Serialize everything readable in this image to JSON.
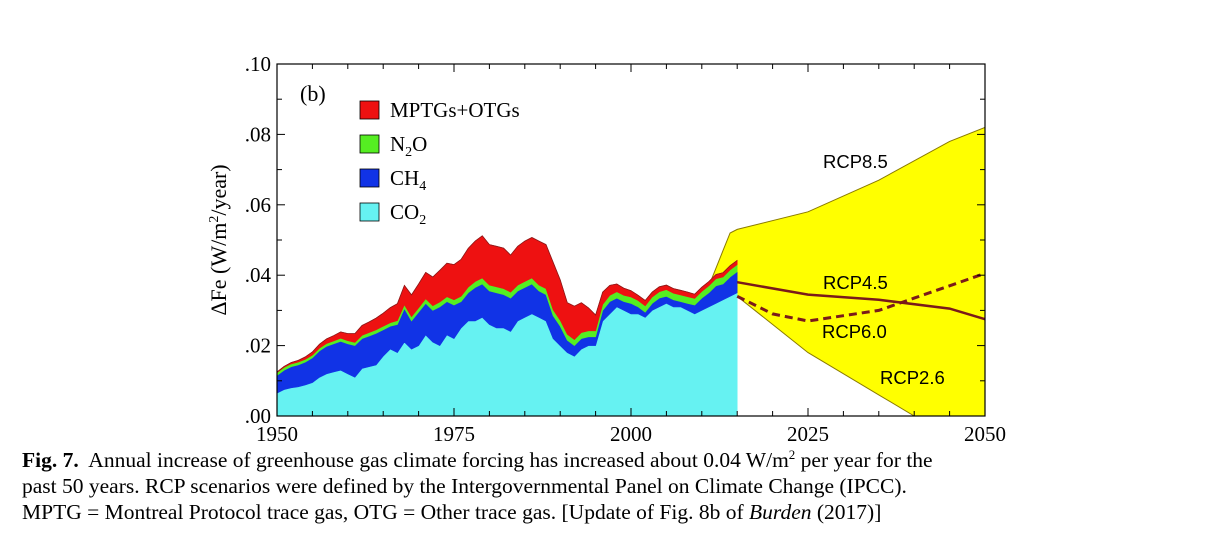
{
  "chart_data": {
    "type": "area",
    "panel_label": "(b)",
    "xlim": [
      1950,
      2050
    ],
    "ylim": [
      0,
      0.1
    ],
    "x_ticks": [
      1950,
      1975,
      2000,
      2025,
      2050
    ],
    "x_tick_labels": [
      "1950",
      "1975",
      "2000",
      "2025",
      "2050"
    ],
    "y_ticks": [
      0,
      0.02,
      0.04,
      0.06,
      0.08,
      0.1
    ],
    "y_tick_labels": [
      ".00",
      ".02",
      ".04",
      ".06",
      ".08",
      ".10"
    ],
    "ylabel": {
      "pre": "ΔFe (W/m",
      "sup": "2",
      "post": "/year)"
    },
    "legend_placement": "top-left",
    "x": [
      1950,
      1951,
      1952,
      1953,
      1954,
      1955,
      1956,
      1957,
      1958,
      1959,
      1960,
      1961,
      1962,
      1963,
      1964,
      1965,
      1966,
      1967,
      1968,
      1969,
      1970,
      1971,
      1972,
      1973,
      1974,
      1975,
      1976,
      1977,
      1978,
      1979,
      1980,
      1981,
      1982,
      1983,
      1984,
      1985,
      1986,
      1987,
      1988,
      1989,
      1990,
      1991,
      1992,
      1993,
      1994,
      1995,
      1996,
      1997,
      1998,
      1999,
      2000,
      2001,
      2002,
      2003,
      2004,
      2005,
      2006,
      2007,
      2008,
      2009,
      2010,
      2011,
      2012,
      2013,
      2014,
      2015
    ],
    "series": [
      {
        "name": "CO",
        "sub": "2",
        "color": "#66f2f2",
        "values": [
          0.0065,
          0.0075,
          0.008,
          0.0083,
          0.0088,
          0.0095,
          0.011,
          0.012,
          0.0125,
          0.013,
          0.012,
          0.011,
          0.0135,
          0.014,
          0.0145,
          0.017,
          0.019,
          0.018,
          0.021,
          0.019,
          0.02,
          0.023,
          0.021,
          0.02,
          0.023,
          0.022,
          0.025,
          0.027,
          0.027,
          0.028,
          0.026,
          0.025,
          0.025,
          0.024,
          0.027,
          0.028,
          0.029,
          0.028,
          0.027,
          0.022,
          0.02,
          0.018,
          0.017,
          0.019,
          0.02,
          0.02,
          0.027,
          0.029,
          0.031,
          0.03,
          0.029,
          0.029,
          0.028,
          0.03,
          0.031,
          0.032,
          0.031,
          0.031,
          0.03,
          0.029,
          0.03,
          0.031,
          0.032,
          0.033,
          0.034,
          0.035
        ]
      },
      {
        "name": "CH",
        "sub": "4",
        "color": "#1133e6",
        "values": [
          0.005,
          0.0055,
          0.006,
          0.0062,
          0.0065,
          0.007,
          0.0075,
          0.0078,
          0.008,
          0.0082,
          0.0085,
          0.009,
          0.0085,
          0.0087,
          0.009,
          0.0075,
          0.0065,
          0.008,
          0.0095,
          0.008,
          0.0095,
          0.009,
          0.009,
          0.011,
          0.0095,
          0.0095,
          0.0075,
          0.008,
          0.0095,
          0.0095,
          0.0095,
          0.01,
          0.0095,
          0.0095,
          0.0085,
          0.0085,
          0.0085,
          0.0075,
          0.0075,
          0.0065,
          0.0055,
          0.0035,
          0.003,
          0.003,
          0.0025,
          0.0025,
          0.003,
          0.0035,
          0.0025,
          0.0025,
          0.003,
          0.002,
          0.0015,
          0.002,
          0.0025,
          0.002,
          0.002,
          0.0015,
          0.002,
          0.0025,
          0.0035,
          0.004,
          0.005,
          0.0045,
          0.0055,
          0.006
        ]
      },
      {
        "name": "N",
        "sub": "2",
        "post": "O",
        "color": "#55ee22",
        "values": [
          0.0008,
          0.0008,
          0.0008,
          0.0008,
          0.0008,
          0.0008,
          0.0008,
          0.0008,
          0.0008,
          0.0009,
          0.0009,
          0.0009,
          0.0009,
          0.001,
          0.001,
          0.001,
          0.001,
          0.0011,
          0.0011,
          0.0012,
          0.0012,
          0.0013,
          0.0013,
          0.0014,
          0.0014,
          0.0015,
          0.0015,
          0.0016,
          0.0017,
          0.0017,
          0.0017,
          0.0017,
          0.0017,
          0.0017,
          0.0017,
          0.0017,
          0.0017,
          0.0017,
          0.0017,
          0.0017,
          0.0017,
          0.0017,
          0.0017,
          0.0017,
          0.0017,
          0.0017,
          0.0017,
          0.0018,
          0.0018,
          0.0018,
          0.0018,
          0.0018,
          0.0018,
          0.0018,
          0.0018,
          0.0019,
          0.0019,
          0.0019,
          0.0019,
          0.0019,
          0.0019,
          0.002,
          0.002,
          0.002,
          0.002,
          0.002
        ]
      },
      {
        "name": "MPTGs+OTGs",
        "color": "#ee1111",
        "values": [
          0.0002,
          0.0003,
          0.0004,
          0.0005,
          0.0007,
          0.0009,
          0.0011,
          0.0013,
          0.0015,
          0.0018,
          0.002,
          0.0025,
          0.0028,
          0.003,
          0.0033,
          0.0037,
          0.0043,
          0.0048,
          0.0055,
          0.0062,
          0.0068,
          0.0075,
          0.0082,
          0.009,
          0.0095,
          0.01,
          0.0105,
          0.011,
          0.0115,
          0.012,
          0.0115,
          0.0115,
          0.0115,
          0.0105,
          0.011,
          0.0115,
          0.0115,
          0.0125,
          0.0125,
          0.0135,
          0.0115,
          0.009,
          0.0095,
          0.0085,
          0.0065,
          0.0045,
          0.0035,
          0.0028,
          0.0022,
          0.002,
          0.0018,
          0.0015,
          0.0015,
          0.0014,
          0.0014,
          0.0013,
          0.0013,
          0.0013,
          0.0013,
          0.0012,
          0.0012,
          0.0012,
          0.0012,
          0.0012,
          0.0012,
          0.0012
        ]
      }
    ],
    "projection_envelope": {
      "color": "#ffff00",
      "upper": {
        "x": [
          2015,
          2025,
          2035,
          2045,
          2050
        ],
        "y": [
          0.049,
          0.058,
          0.067,
          0.078,
          0.082
        ]
      },
      "lower": {
        "x": [
          2015,
          2025,
          2035,
          2040,
          2050
        ],
        "y": [
          0.034,
          0.018,
          0.006,
          0.0,
          0.0
        ]
      },
      "early_upper": {
        "x": [
          2011,
          2013,
          2014,
          2015
        ],
        "y": [
          0.037,
          0.047,
          0.052,
          0.053
        ]
      }
    },
    "scenarios": [
      {
        "name": "RCP8.5"
      },
      {
        "name": "RCP4.5",
        "style": "solid",
        "color": "#7a1a1a",
        "x": [
          2015,
          2025,
          2035,
          2045,
          2050
        ],
        "y": [
          0.038,
          0.0345,
          0.033,
          0.0305,
          0.0275
        ]
      },
      {
        "name": "RCP6.0",
        "style": "dashed",
        "color": "#7a1a1a",
        "x": [
          2015,
          2020,
          2025,
          2030,
          2035,
          2040,
          2045,
          2050
        ],
        "y": [
          0.034,
          0.029,
          0.027,
          0.0285,
          0.03,
          0.0335,
          0.037,
          0.0405
        ]
      },
      {
        "name": "RCP2.6"
      }
    ]
  },
  "caption": {
    "fig_label": "Fig. 7.",
    "line1_text": "  Annual increase of greenhouse gas climate forcing has increased about 0.04 W/m",
    "line1_sup": "2",
    "line1_end": " per year for the",
    "line2": "past 50 years.  RCP scenarios were defined by the Intergovernmental Panel on Climate Change (IPCC).",
    "line3_pre": "MPTG = Montreal Protocol trace gas, OTG = Other trace gas. [Update of Fig. 8b of ",
    "line3_italic": "Burden",
    "line3_post": " (2017)]"
  }
}
